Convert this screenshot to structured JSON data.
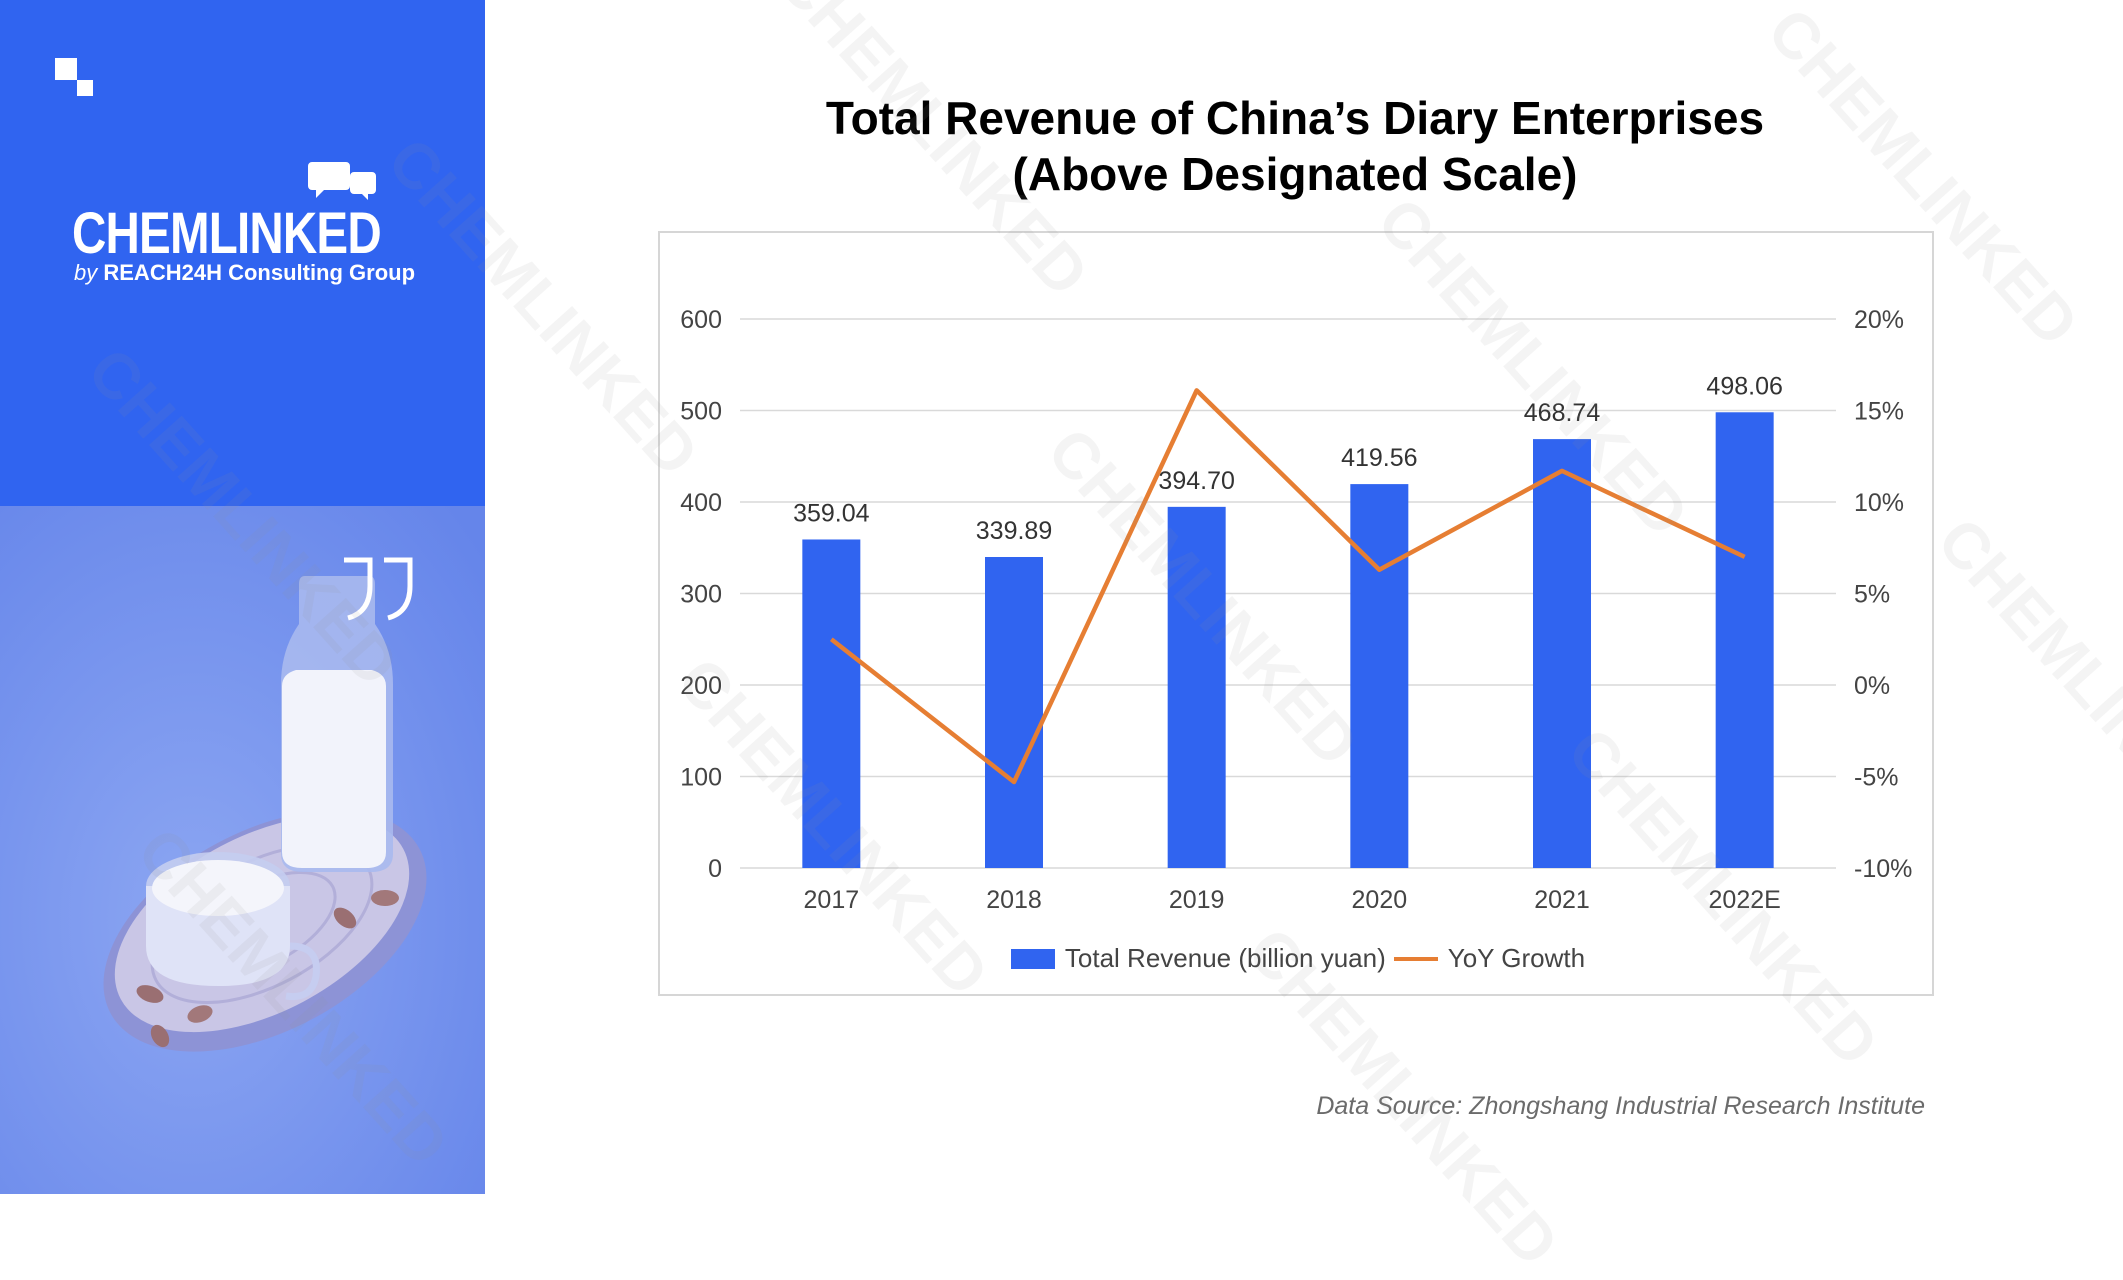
{
  "brand": {
    "name": "CHEMLINKED",
    "tagline_by": "by",
    "tagline_company": "REACH24H Consulting Group",
    "primary_color": "#3064f0",
    "icons": [
      "corner-logo-mark-icon",
      "chat-bubbles-icon",
      "quote-icon"
    ]
  },
  "chart_data": {
    "type": "bar+line",
    "title_line1": "Total Revenue of China’s Diary Enterprises",
    "title_line2": "(Above Designated Scale)",
    "categories": [
      "2017",
      "2018",
      "2019",
      "2020",
      "2021",
      "2022E"
    ],
    "series": [
      {
        "name": "Total Revenue (billion yuan)",
        "type": "bar",
        "axis": "left",
        "color": "#3064f0",
        "values": [
          359.04,
          339.89,
          394.7,
          419.56,
          468.74,
          498.06
        ],
        "labels": [
          "359.04",
          "339.89",
          "394.70",
          "419.56",
          "468.74",
          "498.06"
        ]
      },
      {
        "name": "YoY Growth",
        "type": "line",
        "axis": "right",
        "color": "#e67e33",
        "values": [
          2.5,
          -5.3,
          16.1,
          6.3,
          11.7,
          7.0
        ]
      }
    ],
    "y_left": {
      "min": 0,
      "max": 600,
      "ticks": [
        0,
        100,
        200,
        300,
        400,
        500,
        600
      ],
      "tick_labels": [
        "0",
        "100",
        "200",
        "300",
        "400",
        "500",
        "600"
      ]
    },
    "y_right": {
      "min": -10,
      "max": 20,
      "ticks": [
        -10,
        -5,
        0,
        5,
        10,
        15,
        20
      ],
      "tick_labels": [
        "-10%",
        "-5%",
        "0%",
        "5%",
        "10%",
        "15%",
        "20%"
      ]
    },
    "grid": true,
    "legend_position": "bottom"
  },
  "data_source": "Data Source: Zhongshang Industrial Research Institute"
}
